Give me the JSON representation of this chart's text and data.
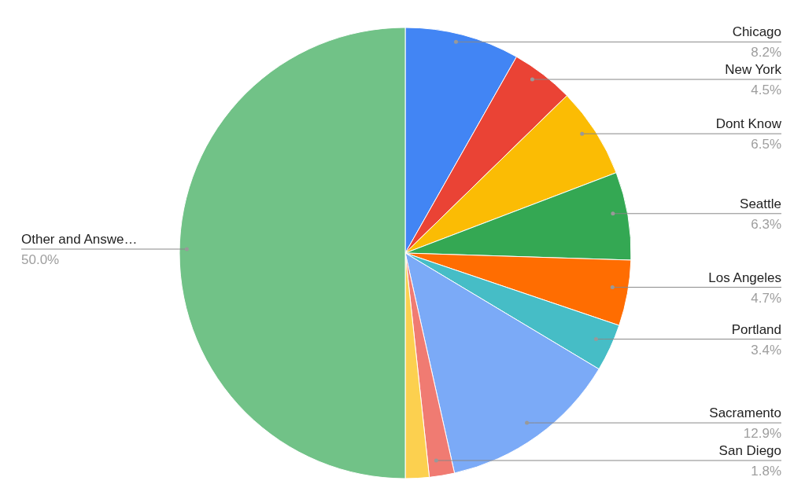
{
  "chart_data": {
    "type": "pie",
    "categories": [
      "Chicago",
      "New York",
      "Dont Know",
      "Seattle",
      "Los Angeles",
      "Portland",
      "Sacramento",
      "San Diego",
      null,
      "Other and Answe…"
    ],
    "values": [
      8.2,
      4.5,
      6.5,
      6.3,
      4.7,
      3.4,
      12.9,
      1.8,
      1.7,
      50.0
    ],
    "value_labels": [
      "8.2%",
      "4.5%",
      "6.5%",
      "6.3%",
      "4.7%",
      "3.4%",
      "12.9%",
      "1.8%",
      null,
      "50.0%"
    ],
    "colors": [
      "#4285f4",
      "#ea4335",
      "#fbbc04",
      "#34a853",
      "#ff6d01",
      "#46bdc6",
      "#7baaf7",
      "#f07b72",
      "#fcd04f",
      "#71c287"
    ]
  }
}
